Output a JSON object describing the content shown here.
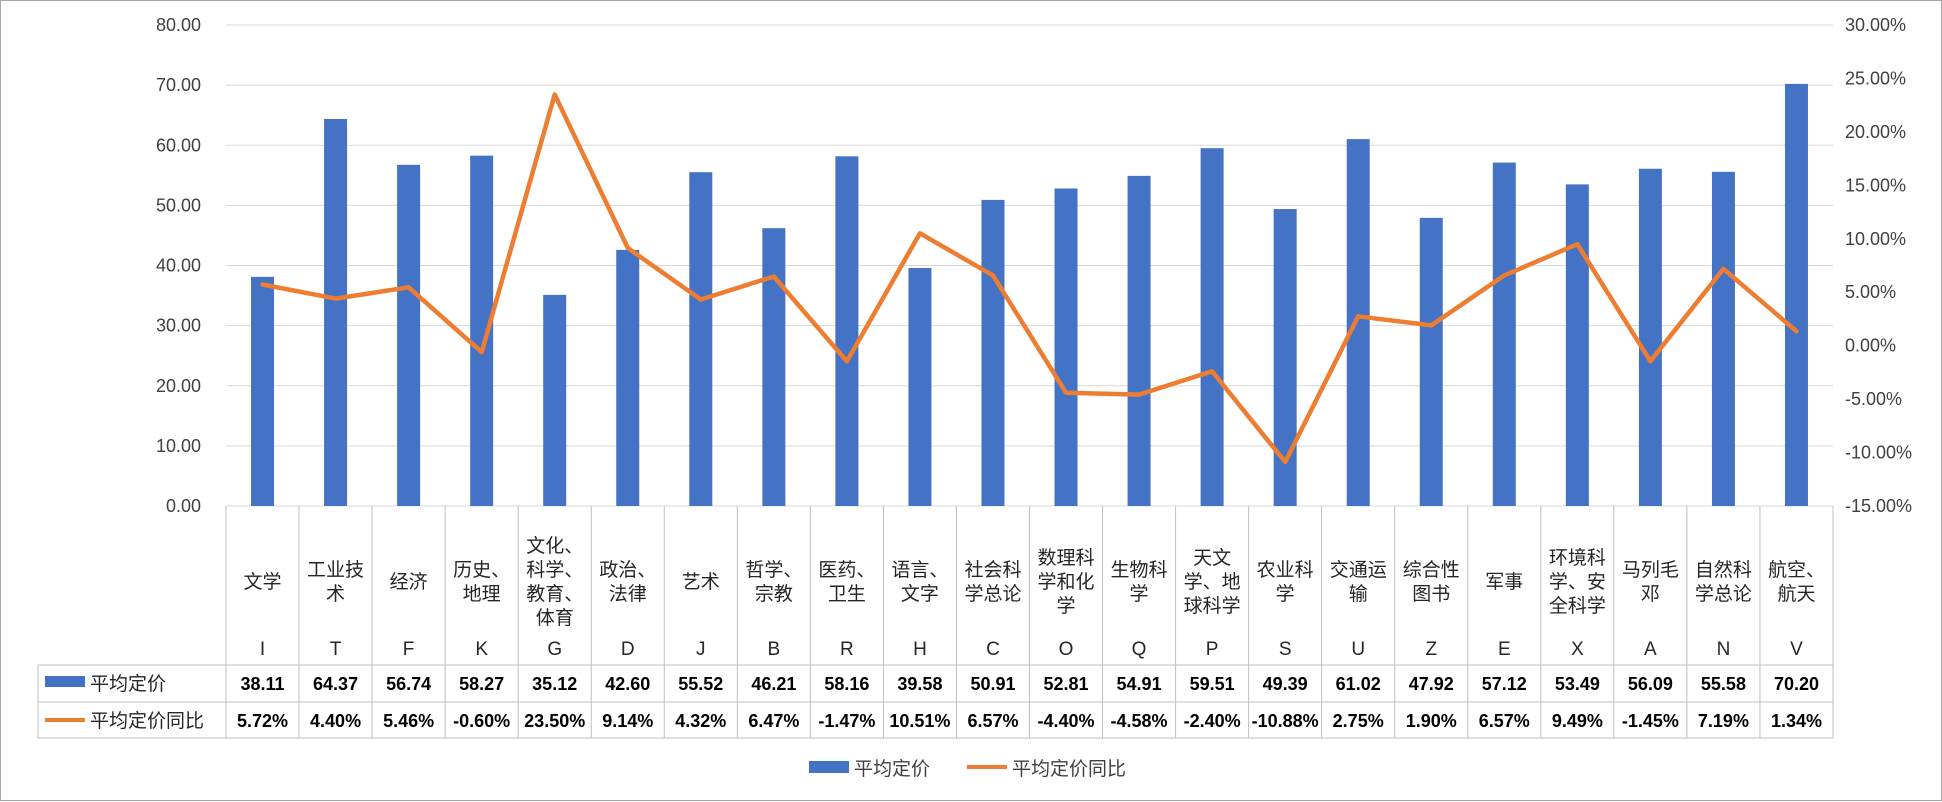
{
  "chart_data": {
    "type": "bar",
    "combo": "bar+line (secondary axis)",
    "legend_position": "bottom",
    "grid": true,
    "categories": [
      "文学",
      "工业技术",
      "经济",
      "历史、地理",
      "文化、科学、教育、体育",
      "政治、法律",
      "艺术",
      "哲学、宗教",
      "医药、卫生",
      "语言、文字",
      "社会科学总论",
      "数理科学和化学",
      "生物科学",
      "天文学、地球科学",
      "农业科学",
      "交通运输",
      "综合性图书",
      "军事",
      "环境科学、安全科学",
      "马列毛邓",
      "自然科学总论",
      "航空、航天"
    ],
    "category_lines": [
      [
        "文学"
      ],
      [
        "工业技",
        "术"
      ],
      [
        "经济"
      ],
      [
        "历史、",
        "地理"
      ],
      [
        "文化、",
        "科学、",
        "教育、",
        "体育"
      ],
      [
        "政治、",
        "法律"
      ],
      [
        "艺术"
      ],
      [
        "哲学、",
        "宗教"
      ],
      [
        "医药、",
        "卫生"
      ],
      [
        "语言、",
        "文字"
      ],
      [
        "社会科",
        "学总论"
      ],
      [
        "数理科",
        "学和化",
        "学"
      ],
      [
        "生物科",
        "学"
      ],
      [
        "天文",
        "学、地",
        "球科学"
      ],
      [
        "农业科",
        "学"
      ],
      [
        "交通运",
        "输"
      ],
      [
        "综合性",
        "图书"
      ],
      [
        "军事"
      ],
      [
        "环境科",
        "学、安",
        "全科学"
      ],
      [
        "马列毛",
        "邓"
      ],
      [
        "自然科",
        "学总论"
      ],
      [
        "航空、",
        "航天"
      ]
    ],
    "codes": [
      "I",
      "T",
      "F",
      "K",
      "G",
      "D",
      "J",
      "B",
      "R",
      "H",
      "C",
      "O",
      "Q",
      "P",
      "S",
      "U",
      "Z",
      "E",
      "X",
      "A",
      "N",
      "V"
    ],
    "series": [
      {
        "name": "平均定价",
        "type": "bar",
        "axis": "left",
        "color": "#4472c4",
        "values": [
          38.11,
          64.37,
          56.74,
          58.27,
          35.12,
          42.6,
          55.52,
          46.21,
          58.16,
          39.58,
          50.91,
          52.81,
          54.91,
          59.51,
          49.39,
          61.02,
          47.92,
          57.12,
          53.49,
          56.09,
          55.58,
          70.2
        ],
        "labels": [
          "38.11",
          "64.37",
          "56.74",
          "58.27",
          "35.12",
          "42.60",
          "55.52",
          "46.21",
          "58.16",
          "39.58",
          "50.91",
          "52.81",
          "54.91",
          "59.51",
          "49.39",
          "61.02",
          "47.92",
          "57.12",
          "53.49",
          "56.09",
          "55.58",
          "70.20"
        ]
      },
      {
        "name": "平均定价同比",
        "type": "line",
        "axis": "right",
        "color": "#ed7d31",
        "values": [
          5.72,
          4.4,
          5.46,
          -0.6,
          23.5,
          9.14,
          4.32,
          6.47,
          -1.47,
          10.51,
          6.57,
          -4.4,
          -4.58,
          -2.4,
          -10.88,
          2.75,
          1.9,
          6.57,
          9.49,
          -1.45,
          7.19,
          1.34
        ],
        "labels": [
          "5.72%",
          "4.40%",
          "5.46%",
          "-0.60%",
          "23.50%",
          "9.14%",
          "4.32%",
          "6.47%",
          "-1.47%",
          "10.51%",
          "6.57%",
          "-4.40%",
          "-4.58%",
          "-2.40%",
          "-10.88%",
          "2.75%",
          "1.90%",
          "6.57%",
          "9.49%",
          "-1.45%",
          "7.19%",
          "1.34%"
        ]
      }
    ],
    "y_left": {
      "range": [
        0,
        80
      ],
      "ticks": [
        0,
        10,
        20,
        30,
        40,
        50,
        60,
        70,
        80
      ],
      "tick_labels": [
        "0.00",
        "10.00",
        "20.00",
        "30.00",
        "40.00",
        "50.00",
        "60.00",
        "70.00",
        "80.00"
      ]
    },
    "y_right": {
      "range": [
        -15,
        30
      ],
      "ticks": [
        -15,
        -10,
        -5,
        0,
        5,
        10,
        15,
        20,
        25,
        30
      ],
      "tick_labels": [
        "-15.00%",
        "-10.00%",
        "-5.00%",
        "0.00%",
        "5.00%",
        "10.00%",
        "15.00%",
        "20.00%",
        "25.00%",
        "30.00%"
      ]
    }
  }
}
